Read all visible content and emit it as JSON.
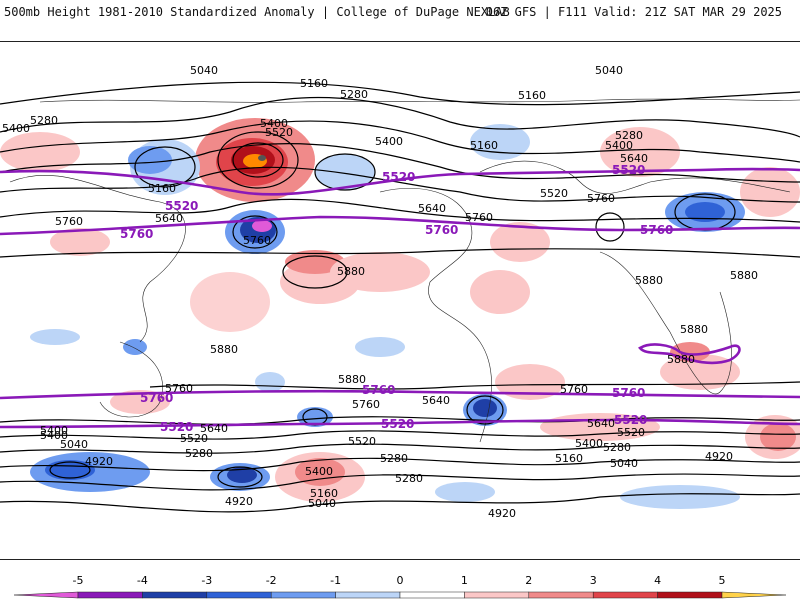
{
  "header": {
    "title_left": "500mb Height 1981-2010 Standardized Anomaly | College of DuPage NEXLAB",
    "title_right": "06Z GFS | F111 Valid: 21Z SAT MAR 29 2025"
  },
  "contour_labels": {
    "black": [
      "5040",
      "5160",
      "5280",
      "5400",
      "5520",
      "5640",
      "5760",
      "5880",
      "4920"
    ],
    "purple": [
      "5520",
      "5760"
    ]
  },
  "colorbar": {
    "ticks": [
      "-5",
      "-4",
      "-3",
      "-2",
      "-1",
      "0",
      "1",
      "2",
      "3",
      "4",
      "5"
    ],
    "colors": [
      "#e05ad8",
      "#8a19b8",
      "#1f3fa6",
      "#2f62d6",
      "#6e9cf0",
      "#bcd5f7",
      "#ffffff",
      "#fbc7c7",
      "#f08a8a",
      "#e0444a",
      "#b0101a",
      "#ff8a00",
      "#ffd24a"
    ]
  }
}
